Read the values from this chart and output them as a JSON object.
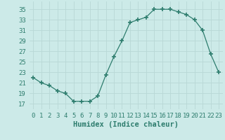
{
  "x": [
    0,
    1,
    2,
    3,
    4,
    5,
    6,
    7,
    8,
    9,
    10,
    11,
    12,
    13,
    14,
    15,
    16,
    17,
    18,
    19,
    20,
    21,
    22,
    23
  ],
  "y": [
    22,
    21,
    20.5,
    19.5,
    19,
    17.5,
    17.5,
    17.5,
    18.5,
    22.5,
    26,
    29,
    32.5,
    33,
    33.5,
    35,
    35,
    35,
    34.5,
    34,
    33,
    31,
    26.5,
    23
  ],
  "line_color": "#2e7d6e",
  "marker_color": "#2e7d6e",
  "bg_color": "#cceae8",
  "grid_color": "#b8d8d6",
  "xlabel": "Humidex (Indice chaleur)",
  "xlim": [
    -0.5,
    23.5
  ],
  "ylim": [
    16,
    36.5
  ],
  "yticks": [
    17,
    19,
    21,
    23,
    25,
    27,
    29,
    31,
    33,
    35
  ],
  "xtick_labels": [
    "0",
    "1",
    "2",
    "3",
    "4",
    "5",
    "6",
    "7",
    "8",
    "9",
    "10",
    "11",
    "12",
    "13",
    "14",
    "15",
    "16",
    "17",
    "18",
    "19",
    "20",
    "21",
    "22",
    "23"
  ],
  "tick_color": "#2e7d6e",
  "xlabel_fontsize": 7.5,
  "tick_fontsize": 6.5
}
